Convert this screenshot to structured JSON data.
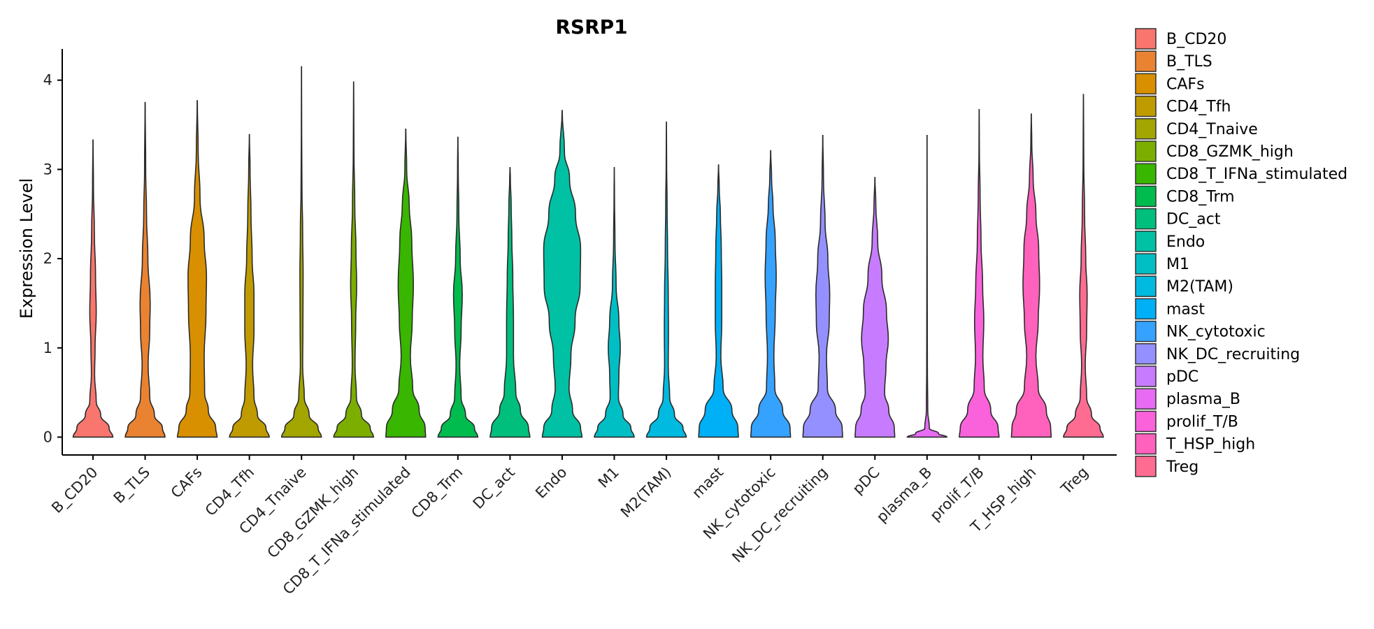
{
  "chart_data": {
    "type": "violin",
    "title": "RSRP1",
    "xlabel": "",
    "ylabel": "Expression Level",
    "ylim": [
      -0.2,
      4.35
    ],
    "yticks": [
      0,
      1,
      2,
      3,
      4
    ],
    "legend_position": "right",
    "categories": [
      "B_CD20",
      "B_TLS",
      "CAFs",
      "CD4_Tfh",
      "CD4_Tnaive",
      "CD8_GZMK_high",
      "CD8_T_IFNa_stimulated",
      "CD8_Trm",
      "DC_act",
      "Endo",
      "M1",
      "M2(TAM)",
      "mast",
      "NK_cytotoxic",
      "NK_DC_recruiting",
      "pDC",
      "plasma_B",
      "prolif_T/B",
      "T_HSP_high",
      "Treg"
    ],
    "colors": [
      "#F8766D",
      "#EA8331",
      "#D89000",
      "#C09B00",
      "#A3A500",
      "#7CAE00",
      "#39B600",
      "#00BB4E",
      "#00BF7D",
      "#00C1A3",
      "#00BFC4",
      "#00BAE0",
      "#00B0F6",
      "#35A2FF",
      "#9590FF",
      "#C77CFF",
      "#E76BF3",
      "#FA62DB",
      "#FF62BC",
      "#FF6C91"
    ],
    "max_values": [
      3.33,
      3.75,
      3.77,
      3.39,
      4.15,
      3.98,
      3.45,
      3.36,
      3.02,
      3.66,
      3.02,
      3.53,
      3.05,
      3.21,
      3.38,
      2.91,
      3.38,
      3.67,
      3.62,
      3.84
    ],
    "violins": [
      {
        "profile": [
          [
            0,
            0.86
          ],
          [
            0.1,
            0.7
          ],
          [
            0.25,
            0.33
          ],
          [
            0.4,
            0.14
          ],
          [
            0.7,
            0.07
          ],
          [
            1.0,
            0.09
          ],
          [
            1.4,
            0.14
          ],
          [
            1.8,
            0.11
          ],
          [
            2.3,
            0.06
          ],
          [
            2.8,
            0.02
          ],
          [
            3.33,
            0.003
          ]
        ]
      },
      {
        "profile": [
          [
            0,
            0.86
          ],
          [
            0.1,
            0.75
          ],
          [
            0.25,
            0.4
          ],
          [
            0.45,
            0.2
          ],
          [
            0.8,
            0.13
          ],
          [
            1.2,
            0.2
          ],
          [
            1.5,
            0.22
          ],
          [
            2.0,
            0.12
          ],
          [
            2.5,
            0.06
          ],
          [
            3.0,
            0.025
          ],
          [
            3.75,
            0.004
          ]
        ]
      },
      {
        "profile": [
          [
            0,
            0.86
          ],
          [
            0.1,
            0.8
          ],
          [
            0.3,
            0.48
          ],
          [
            0.5,
            0.32
          ],
          [
            0.9,
            0.3
          ],
          [
            1.4,
            0.38
          ],
          [
            1.8,
            0.4
          ],
          [
            2.2,
            0.3
          ],
          [
            2.7,
            0.12
          ],
          [
            3.2,
            0.04
          ],
          [
            3.77,
            0.004
          ]
        ]
      },
      {
        "profile": [
          [
            0,
            0.86
          ],
          [
            0.1,
            0.72
          ],
          [
            0.25,
            0.35
          ],
          [
            0.45,
            0.2
          ],
          [
            0.8,
            0.14
          ],
          [
            1.2,
            0.2
          ],
          [
            1.6,
            0.2
          ],
          [
            2.0,
            0.12
          ],
          [
            2.5,
            0.07
          ],
          [
            3.0,
            0.03
          ],
          [
            3.39,
            0.003
          ]
        ]
      },
      {
        "profile": [
          [
            0,
            0.86
          ],
          [
            0.1,
            0.72
          ],
          [
            0.25,
            0.33
          ],
          [
            0.45,
            0.12
          ],
          [
            0.8,
            0.05
          ],
          [
            1.2,
            0.06
          ],
          [
            1.8,
            0.07
          ],
          [
            2.3,
            0.05
          ],
          [
            2.8,
            0.02
          ],
          [
            3.4,
            0.008
          ],
          [
            4.15,
            0.002
          ]
        ]
      },
      {
        "profile": [
          [
            0,
            0.86
          ],
          [
            0.1,
            0.72
          ],
          [
            0.25,
            0.34
          ],
          [
            0.45,
            0.12
          ],
          [
            0.8,
            0.06
          ],
          [
            1.3,
            0.09
          ],
          [
            1.7,
            0.13
          ],
          [
            2.1,
            0.1
          ],
          [
            2.6,
            0.05
          ],
          [
            3.2,
            0.015
          ],
          [
            3.98,
            0.002
          ]
        ]
      },
      {
        "profile": [
          [
            0,
            0.86
          ],
          [
            0.1,
            0.84
          ],
          [
            0.3,
            0.58
          ],
          [
            0.55,
            0.3
          ],
          [
            0.9,
            0.2
          ],
          [
            1.3,
            0.28
          ],
          [
            1.7,
            0.33
          ],
          [
            2.2,
            0.26
          ],
          [
            2.6,
            0.15
          ],
          [
            3.0,
            0.04
          ],
          [
            3.45,
            0.004
          ]
        ]
      },
      {
        "profile": [
          [
            0,
            0.86
          ],
          [
            0.1,
            0.72
          ],
          [
            0.25,
            0.33
          ],
          [
            0.45,
            0.14
          ],
          [
            0.8,
            0.08
          ],
          [
            1.2,
            0.14
          ],
          [
            1.6,
            0.19
          ],
          [
            2.0,
            0.1
          ],
          [
            2.5,
            0.04
          ],
          [
            3.0,
            0.015
          ],
          [
            3.36,
            0.003
          ]
        ]
      },
      {
        "profile": [
          [
            0,
            0.86
          ],
          [
            0.1,
            0.8
          ],
          [
            0.3,
            0.45
          ],
          [
            0.5,
            0.25
          ],
          [
            0.9,
            0.15
          ],
          [
            1.3,
            0.15
          ],
          [
            1.8,
            0.12
          ],
          [
            2.2,
            0.08
          ],
          [
            2.6,
            0.05
          ],
          [
            2.9,
            0.015
          ],
          [
            3.02,
            0.003
          ]
        ]
      },
      {
        "profile": [
          [
            0,
            0.86
          ],
          [
            0.1,
            0.8
          ],
          [
            0.3,
            0.45
          ],
          [
            0.55,
            0.3
          ],
          [
            0.9,
            0.38
          ],
          [
            1.3,
            0.56
          ],
          [
            1.7,
            0.78
          ],
          [
            2.1,
            0.8
          ],
          [
            2.5,
            0.58
          ],
          [
            2.9,
            0.32
          ],
          [
            3.2,
            0.1
          ],
          [
            3.66,
            0.003
          ]
        ]
      },
      {
        "profile": [
          [
            0,
            0.86
          ],
          [
            0.1,
            0.72
          ],
          [
            0.25,
            0.38
          ],
          [
            0.45,
            0.18
          ],
          [
            0.7,
            0.2
          ],
          [
            1.0,
            0.26
          ],
          [
            1.3,
            0.2
          ],
          [
            1.7,
            0.08
          ],
          [
            2.2,
            0.03
          ],
          [
            2.7,
            0.01
          ],
          [
            3.02,
            0.002
          ]
        ]
      },
      {
        "profile": [
          [
            0,
            0.86
          ],
          [
            0.1,
            0.72
          ],
          [
            0.25,
            0.35
          ],
          [
            0.45,
            0.14
          ],
          [
            0.8,
            0.08
          ],
          [
            1.2,
            0.09
          ],
          [
            1.6,
            0.08
          ],
          [
            2.1,
            0.05
          ],
          [
            2.6,
            0.03
          ],
          [
            3.1,
            0.01
          ],
          [
            3.53,
            0.002
          ]
        ]
      },
      {
        "profile": [
          [
            0,
            0.86
          ],
          [
            0.1,
            0.84
          ],
          [
            0.3,
            0.58
          ],
          [
            0.55,
            0.2
          ],
          [
            0.9,
            0.1
          ],
          [
            1.3,
            0.14
          ],
          [
            1.7,
            0.14
          ],
          [
            2.1,
            0.12
          ],
          [
            2.5,
            0.08
          ],
          [
            2.8,
            0.03
          ],
          [
            3.05,
            0.003
          ]
        ]
      },
      {
        "profile": [
          [
            0,
            0.86
          ],
          [
            0.1,
            0.84
          ],
          [
            0.3,
            0.52
          ],
          [
            0.55,
            0.18
          ],
          [
            0.9,
            0.14
          ],
          [
            1.4,
            0.2
          ],
          [
            1.8,
            0.24
          ],
          [
            2.2,
            0.2
          ],
          [
            2.6,
            0.1
          ],
          [
            2.9,
            0.04
          ],
          [
            3.21,
            0.003
          ]
        ]
      },
      {
        "profile": [
          [
            0,
            0.86
          ],
          [
            0.1,
            0.84
          ],
          [
            0.3,
            0.55
          ],
          [
            0.55,
            0.2
          ],
          [
            0.9,
            0.16
          ],
          [
            1.3,
            0.28
          ],
          [
            1.6,
            0.3
          ],
          [
            2.0,
            0.22
          ],
          [
            2.4,
            0.1
          ],
          [
            2.9,
            0.03
          ],
          [
            3.38,
            0.003
          ]
        ]
      },
      {
        "profile": [
          [
            0,
            0.86
          ],
          [
            0.1,
            0.84
          ],
          [
            0.3,
            0.6
          ],
          [
            0.5,
            0.42
          ],
          [
            0.8,
            0.48
          ],
          [
            1.1,
            0.58
          ],
          [
            1.4,
            0.5
          ],
          [
            1.8,
            0.3
          ],
          [
            2.2,
            0.12
          ],
          [
            2.6,
            0.04
          ],
          [
            2.91,
            0.003
          ]
        ]
      },
      {
        "profile": [
          [
            0,
            0.86
          ],
          [
            0.04,
            0.5
          ],
          [
            0.1,
            0.1
          ],
          [
            0.3,
            0.03
          ],
          [
            0.8,
            0.015
          ],
          [
            1.5,
            0.01
          ],
          [
            2.3,
            0.006
          ],
          [
            3.38,
            0.002
          ]
        ]
      },
      {
        "profile": [
          [
            0,
            0.86
          ],
          [
            0.1,
            0.82
          ],
          [
            0.3,
            0.5
          ],
          [
            0.55,
            0.22
          ],
          [
            0.9,
            0.16
          ],
          [
            1.3,
            0.2
          ],
          [
            1.7,
            0.15
          ],
          [
            2.2,
            0.08
          ],
          [
            2.7,
            0.04
          ],
          [
            3.2,
            0.01
          ],
          [
            3.67,
            0.002
          ]
        ]
      },
      {
        "profile": [
          [
            0,
            0.86
          ],
          [
            0.1,
            0.84
          ],
          [
            0.3,
            0.65
          ],
          [
            0.55,
            0.3
          ],
          [
            0.9,
            0.2
          ],
          [
            1.3,
            0.3
          ],
          [
            1.7,
            0.36
          ],
          [
            2.1,
            0.32
          ],
          [
            2.5,
            0.2
          ],
          [
            2.9,
            0.08
          ],
          [
            3.3,
            0.02
          ],
          [
            3.62,
            0.003
          ]
        ]
      },
      {
        "profile": [
          [
            0,
            0.86
          ],
          [
            0.1,
            0.72
          ],
          [
            0.25,
            0.35
          ],
          [
            0.45,
            0.14
          ],
          [
            0.8,
            0.08
          ],
          [
            1.2,
            0.14
          ],
          [
            1.6,
            0.16
          ],
          [
            2.0,
            0.1
          ],
          [
            2.5,
            0.05
          ],
          [
            3.1,
            0.015
          ],
          [
            3.84,
            0.002
          ]
        ]
      }
    ]
  }
}
